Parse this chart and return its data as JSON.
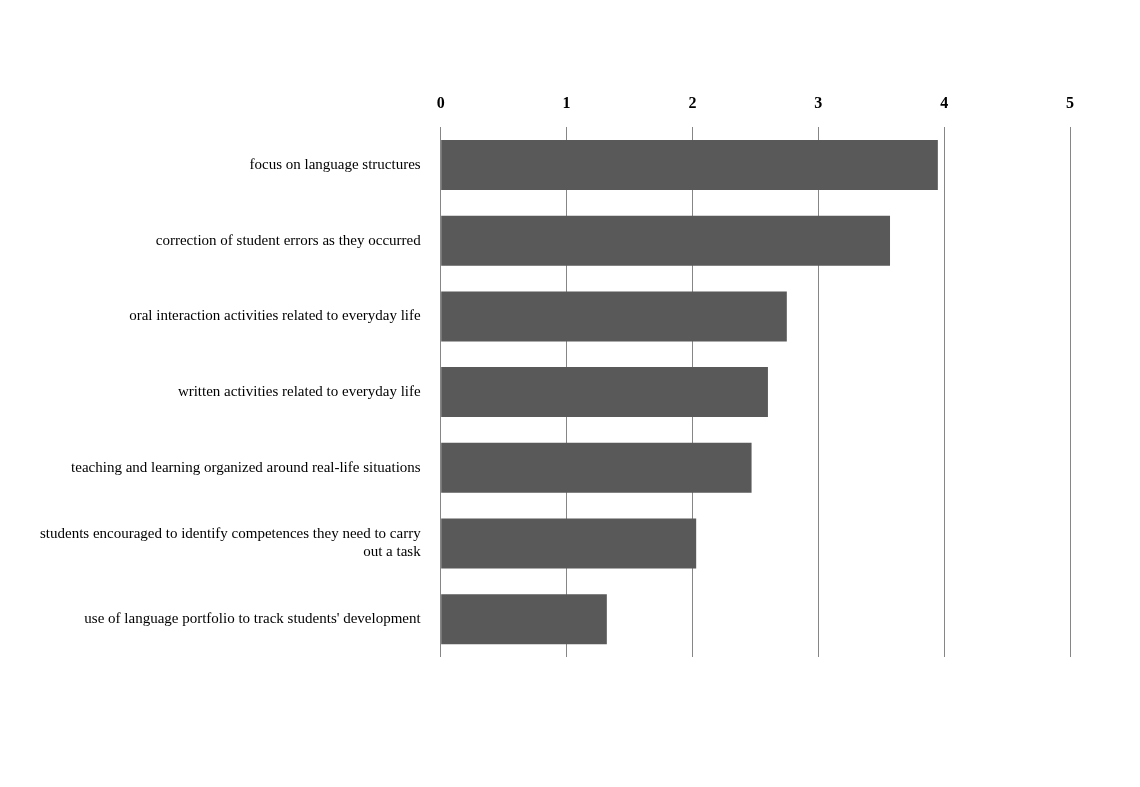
{
  "chart_data": {
    "type": "bar",
    "orientation": "horizontal",
    "categories": [
      "focus on language structures",
      "correction of student errors as they occurred",
      "oral interaction activities related to everyday life",
      "written activities related to everyday life",
      "teaching and learning organized around real-life situations",
      "students encouraged to identify competences they need to carry out a task",
      "use of language portfolio to track students' development"
    ],
    "values": [
      3.95,
      3.57,
      2.75,
      2.6,
      2.47,
      2.03,
      1.32
    ],
    "color": "#595959",
    "xlim": [
      0,
      5
    ],
    "xticks": [
      0,
      1,
      2,
      3,
      4,
      5
    ],
    "grid": "x",
    "legend": false
  }
}
